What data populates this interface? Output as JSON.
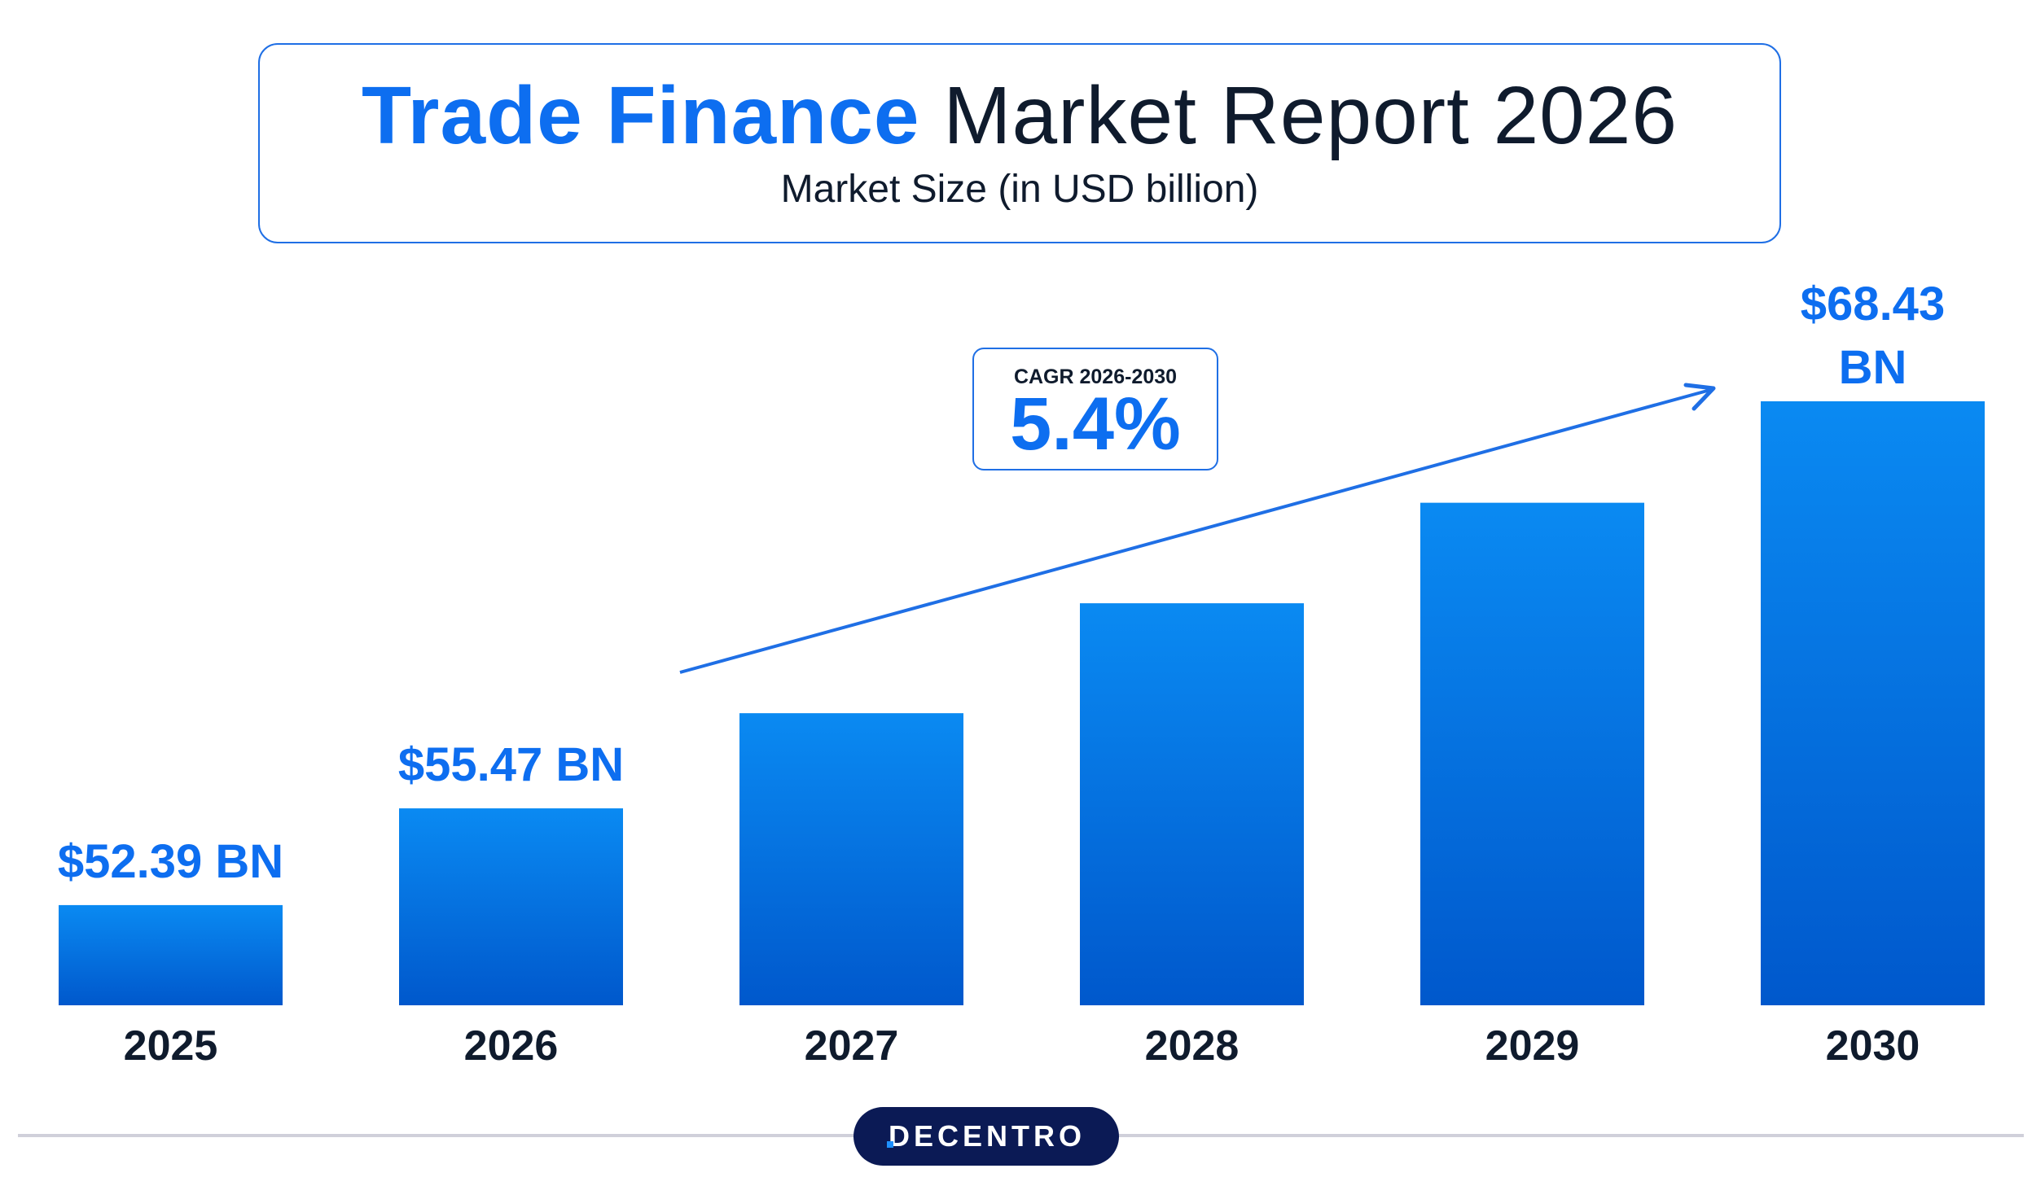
{
  "header": {
    "title_accent": "Trade Finance",
    "title_rest": "Market Report 2026",
    "subtitle": "Market Size (in USD billion)"
  },
  "cagr": {
    "label": "CAGR 2026-2030",
    "value": "5.4%"
  },
  "logo": {
    "text": "DECENTRO"
  },
  "colors": {
    "bar_top": "#0a8af2",
    "bar_bottom": "#0058cc",
    "accent": "#0d6ef0",
    "text_dark": "#0f1b2d",
    "logo_bg": "#0b1a55"
  },
  "chart_data": {
    "type": "bar",
    "title": "Trade Finance Market Report 2026",
    "subtitle": "Market Size (in USD billion)",
    "categories": [
      "2025",
      "2026",
      "2027",
      "2028",
      "2029",
      "2030"
    ],
    "values": [
      52.39,
      55.47,
      58.5,
      62.0,
      65.2,
      68.43
    ],
    "data_labels": [
      "$52.39 BN",
      "$55.47 BN",
      "",
      "",
      "",
      "$68.43 BN"
    ],
    "ylim": [
      49.2,
      68.43
    ],
    "grid": false,
    "legend": "none",
    "annotation": "CAGR 2026-2030 5.4%"
  }
}
